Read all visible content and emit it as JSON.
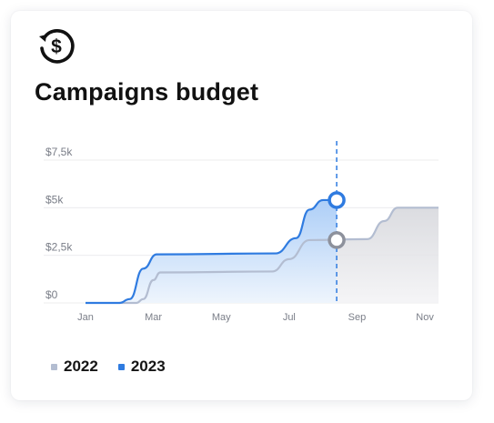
{
  "colors": {
    "series_2022": "#b3bdd1",
    "series_2023": "#2f7be0",
    "area_2022": "#d5d6db",
    "area_2023_top": "#a9ccf7",
    "area_2023_bottom": "#eef5fd",
    "grid": "#ececee",
    "cursor": "#2f7be0",
    "marker_2022": "#8d919c"
  },
  "header": {
    "icon": "dollar-refresh-icon",
    "title": "Campaigns budget"
  },
  "chart_data": {
    "type": "area",
    "title": "Campaigns budget",
    "xlabel": "",
    "ylabel": "",
    "x_ticks": [
      "Jan",
      "Mar",
      "May",
      "Jul",
      "Sep",
      "Nov"
    ],
    "y_ticks": [
      {
        "value": 0,
        "label": "$0"
      },
      {
        "value": 2500,
        "label": "$2,5k"
      },
      {
        "value": 5000,
        "label": "$5k"
      },
      {
        "value": 7500,
        "label": "$7,5k"
      }
    ],
    "ylim": [
      0,
      7500
    ],
    "xlim": [
      0,
      10.4
    ],
    "grid": true,
    "cursor_x": 7.4,
    "series": [
      {
        "name": "2022",
        "points": [
          [
            1,
            0
          ],
          [
            1.5,
            0
          ],
          [
            1.7,
            200
          ],
          [
            2.0,
            1200
          ],
          [
            2.2,
            1600
          ],
          [
            5.5,
            1650
          ],
          [
            6.0,
            2300
          ],
          [
            6.6,
            3300
          ],
          [
            8.3,
            3350
          ],
          [
            8.8,
            4300
          ],
          [
            9.2,
            5000
          ],
          [
            10.4,
            5000
          ]
        ]
      },
      {
        "name": "2023",
        "points": [
          [
            0,
            0
          ],
          [
            1,
            0
          ],
          [
            1.3,
            200
          ],
          [
            1.7,
            1800
          ],
          [
            2.1,
            2550
          ],
          [
            5.6,
            2600
          ],
          [
            6.2,
            3400
          ],
          [
            6.6,
            4900
          ],
          [
            7.0,
            5400
          ],
          [
            7.4,
            5400
          ]
        ]
      }
    ],
    "markers": [
      {
        "series": "2023",
        "x": 7.4,
        "y": 5400
      },
      {
        "series": "2022",
        "x": 7.4,
        "y": 3300
      }
    ],
    "legend_position": "bottom-left"
  },
  "legend": [
    {
      "label": "2022",
      "color": "#b3bdd1"
    },
    {
      "label": "2023",
      "color": "#2f7be0"
    }
  ]
}
